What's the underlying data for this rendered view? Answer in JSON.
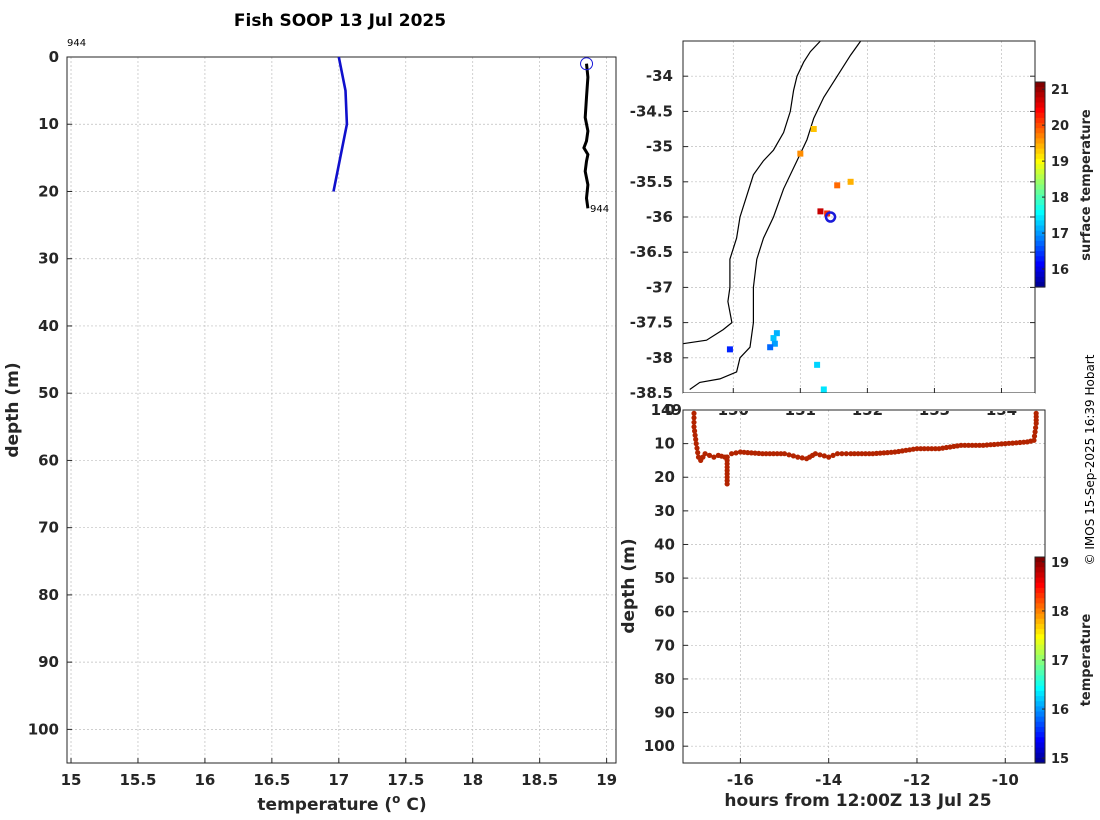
{
  "title": "Fish SOOP 13 Jul 2025",
  "copyright": "© IMOS 15-Sep-2025 16:39 Hobart",
  "colors": {
    "profile": "#1010cc",
    "trace": "#000000",
    "section_points": "#b32400",
    "marker": "#1a1ad9"
  },
  "chart_data": [
    {
      "id": "profile",
      "type": "line",
      "title": "Fish SOOP 13 Jul 2025",
      "xlabel": "temperature (",
      "xlabel_sup": "o",
      "xlabel_end": " C)",
      "ylabel": "depth (m)",
      "xlim": [
        14.97,
        19.07
      ],
      "ylim": [
        0,
        105
      ],
      "xticks": [
        15,
        15.5,
        16,
        16.5,
        17,
        17.5,
        18,
        18.5,
        19
      ],
      "yticks": [
        0,
        10,
        20,
        30,
        40,
        50,
        60,
        70,
        80,
        90,
        100
      ],
      "profile_id_top": "944",
      "profile_id_bottom": "944",
      "series": [
        {
          "name": "climatology",
          "color": "#1010cc",
          "x": [
            17.0,
            17.05,
            17.06,
            16.96
          ],
          "y": [
            0,
            5,
            10,
            20
          ]
        },
        {
          "name": "xbt-trace",
          "color": "#000000",
          "x": [
            18.85,
            18.86,
            18.85,
            18.84,
            18.86,
            18.85,
            18.83,
            18.86,
            18.85,
            18.84,
            18.86,
            18.85,
            18.86
          ],
          "y": [
            1,
            3,
            6,
            9,
            11,
            12.5,
            13.5,
            14.5,
            15.5,
            17,
            19,
            21,
            22.5
          ]
        }
      ],
      "marker": {
        "x": 18.85,
        "y": 1,
        "shape": "circle"
      }
    },
    {
      "id": "map",
      "type": "scatter",
      "xlim": [
        149.25,
        154.5
      ],
      "ylim": [
        -38.5,
        -33.5
      ],
      "xticks": [
        149,
        150,
        151,
        152,
        153,
        154
      ],
      "xtick_labels": [
        "149",
        "150",
        "151",
        "152",
        "153",
        "154"
      ],
      "yticks": [
        -34,
        -34.5,
        -35,
        -35.5,
        -36,
        -36.5,
        -37,
        -37.5,
        -38,
        -38.5
      ],
      "ytick_labels": [
        "-34",
        "-34.5",
        "-35",
        "-35.5",
        "-36",
        "-36.5",
        "-37",
        "-37.5",
        "-38",
        "-38.5"
      ],
      "colorbar": {
        "label": "surface temperature",
        "range": [
          15.5,
          21.2
        ],
        "ticks": [
          16,
          17,
          18,
          19,
          20,
          21
        ]
      },
      "coastline": [
        [
          149.25,
          -37.8
        ],
        [
          149.6,
          -37.75
        ],
        [
          149.85,
          -37.6
        ],
        [
          149.98,
          -37.5
        ],
        [
          149.92,
          -37.2
        ],
        [
          149.95,
          -37.0
        ],
        [
          149.95,
          -36.6
        ],
        [
          150.05,
          -36.3
        ],
        [
          150.1,
          -36.0
        ],
        [
          150.2,
          -35.7
        ],
        [
          150.3,
          -35.4
        ],
        [
          150.45,
          -35.2
        ],
        [
          150.6,
          -35.05
        ],
        [
          150.75,
          -34.8
        ],
        [
          150.85,
          -34.5
        ],
        [
          150.9,
          -34.2
        ],
        [
          150.95,
          -34.0
        ],
        [
          151.05,
          -33.8
        ],
        [
          151.15,
          -33.65
        ],
        [
          151.3,
          -33.5
        ]
      ],
      "shelf": [
        [
          149.35,
          -38.45
        ],
        [
          149.5,
          -38.35
        ],
        [
          149.8,
          -38.3
        ],
        [
          150.05,
          -38.2
        ],
        [
          150.1,
          -38.0
        ],
        [
          150.25,
          -37.85
        ],
        [
          150.3,
          -37.5
        ],
        [
          150.3,
          -37.0
        ],
        [
          150.35,
          -36.6
        ],
        [
          150.45,
          -36.3
        ],
        [
          150.6,
          -36.0
        ],
        [
          150.75,
          -35.6
        ],
        [
          150.95,
          -35.2
        ],
        [
          151.1,
          -34.9
        ],
        [
          151.2,
          -34.6
        ],
        [
          151.35,
          -34.3
        ],
        [
          151.55,
          -34.0
        ],
        [
          151.75,
          -33.7
        ],
        [
          151.9,
          -33.5
        ]
      ],
      "points": [
        {
          "lon": 149.95,
          "lat": -37.88,
          "value": 16.4
        },
        {
          "lon": 150.65,
          "lat": -37.65,
          "value": 17.2
        },
        {
          "lon": 150.6,
          "lat": -37.72,
          "value": 17.3
        },
        {
          "lon": 150.62,
          "lat": -37.8,
          "value": 17.1
        },
        {
          "lon": 150.55,
          "lat": -37.85,
          "value": 16.8
        },
        {
          "lon": 151.25,
          "lat": -38.1,
          "value": 17.4
        },
        {
          "lon": 151.35,
          "lat": -38.45,
          "value": 17.5
        },
        {
          "lon": 151.3,
          "lat": -35.92,
          "value": 20.8
        },
        {
          "lon": 151.4,
          "lat": -35.95,
          "value": 20.2
        },
        {
          "lon": 151.55,
          "lat": -35.55,
          "value": 19.9
        },
        {
          "lon": 151.75,
          "lat": -35.5,
          "value": 19.5
        },
        {
          "lon": 151.0,
          "lat": -35.1,
          "value": 19.7
        },
        {
          "lon": 151.2,
          "lat": -34.75,
          "value": 19.4
        }
      ],
      "ship": {
        "lon": 151.45,
        "lat": -36.0
      }
    },
    {
      "id": "section",
      "type": "scatter",
      "xlabel": "hours from 12:00Z 13 Jul 25",
      "ylabel": "depth (m)",
      "xlim": [
        -17.3,
        -9.1
      ],
      "ylim": [
        0,
        105
      ],
      "xticks": [
        -16,
        -14,
        -12,
        -10
      ],
      "yticks": [
        0,
        10,
        20,
        30,
        40,
        50,
        60,
        70,
        80,
        90,
        100
      ],
      "colorbar": {
        "label": "temperature",
        "range": [
          14.9,
          19.1
        ],
        "ticks": [
          15,
          16,
          17,
          18,
          19
        ]
      },
      "track": [
        [
          -17.05,
          1
        ],
        [
          -17.05,
          5
        ],
        [
          -17.0,
          10
        ],
        [
          -16.95,
          14
        ],
        [
          -16.9,
          15
        ],
        [
          -16.8,
          13
        ],
        [
          -16.6,
          14
        ],
        [
          -16.5,
          13.5
        ],
        [
          -16.35,
          14
        ],
        [
          -16.3,
          14
        ],
        [
          -16.2,
          13
        ],
        [
          -16.0,
          12.5
        ],
        [
          -15.5,
          13
        ],
        [
          -15.0,
          13
        ],
        [
          -14.7,
          14
        ],
        [
          -14.5,
          14.5
        ],
        [
          -14.3,
          13
        ],
        [
          -14.0,
          14
        ],
        [
          -13.8,
          13
        ],
        [
          -13.5,
          13
        ],
        [
          -13.0,
          13
        ],
        [
          -12.5,
          12.5
        ],
        [
          -12.0,
          11.5
        ],
        [
          -11.5,
          11.5
        ],
        [
          -11.0,
          10.5
        ],
        [
          -10.5,
          10.5
        ],
        [
          -10.0,
          10
        ],
        [
          -9.5,
          9.5
        ],
        [
          -9.35,
          9
        ],
        [
          -9.3,
          4
        ],
        [
          -9.3,
          1
        ]
      ],
      "spike": {
        "x": -16.3,
        "y0": 14,
        "y1": 22
      },
      "value": 18.9
    }
  ]
}
